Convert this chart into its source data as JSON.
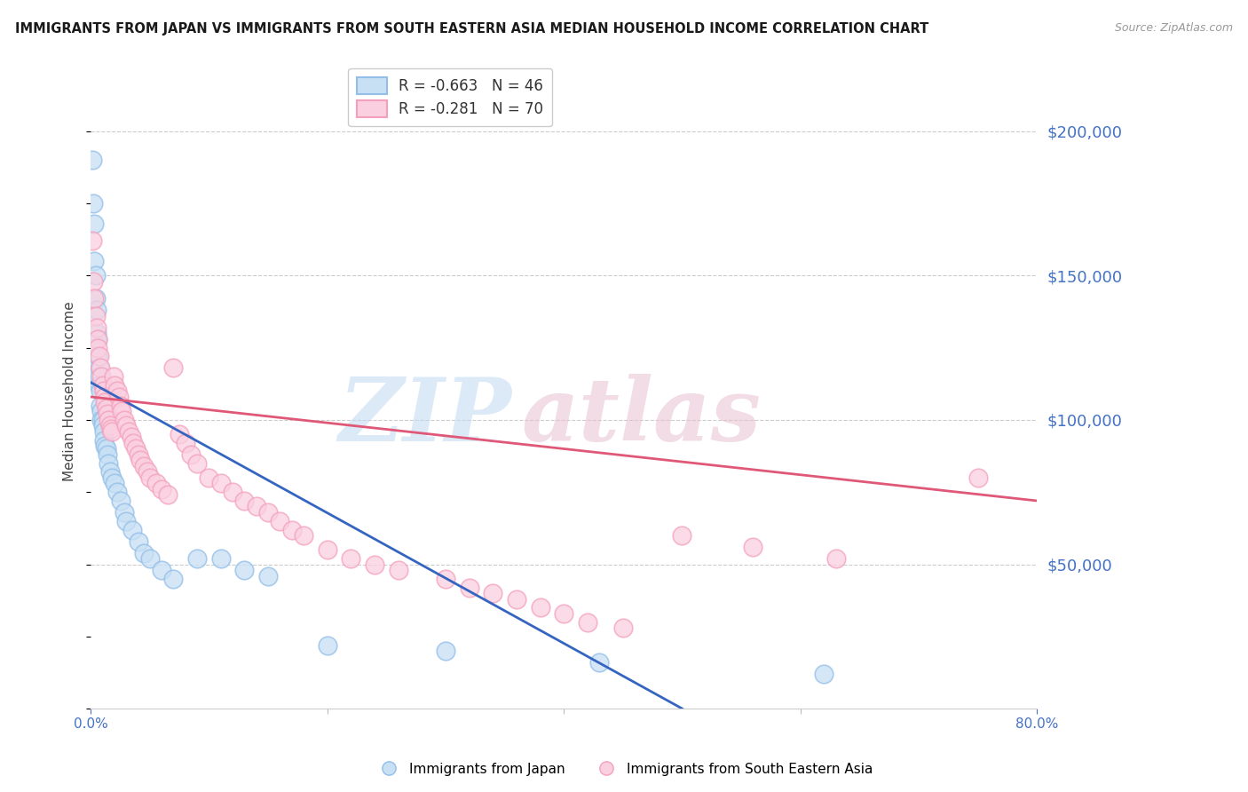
{
  "title": "IMMIGRANTS FROM JAPAN VS IMMIGRANTS FROM SOUTH EASTERN ASIA MEDIAN HOUSEHOLD INCOME CORRELATION CHART",
  "source": "Source: ZipAtlas.com",
  "ylabel": "Median Household Income",
  "series1_label": "Immigrants from Japan",
  "series2_label": "Immigrants from South Eastern Asia",
  "series1_color": "#92bee8",
  "series2_color": "#f4a0bc",
  "series1_R": -0.663,
  "series1_N": 46,
  "series2_R": -0.281,
  "series2_N": 70,
  "xmin": 0.0,
  "xmax": 0.8,
  "ymin": 0,
  "ymax": 220000,
  "yticks": [
    50000,
    100000,
    150000,
    200000
  ],
  "ytick_labels": [
    "$50,000",
    "$100,000",
    "$150,000",
    "$200,000"
  ],
  "background_color": "#ffffff",
  "grid_color": "#cccccc",
  "tick_label_color": "#4472c4",
  "title_fontsize": 11,
  "series1_x": [
    0.001,
    0.002,
    0.003,
    0.003,
    0.004,
    0.004,
    0.005,
    0.005,
    0.006,
    0.006,
    0.007,
    0.007,
    0.007,
    0.008,
    0.008,
    0.009,
    0.009,
    0.01,
    0.01,
    0.011,
    0.011,
    0.012,
    0.013,
    0.014,
    0.015,
    0.016,
    0.018,
    0.02,
    0.022,
    0.025,
    0.028,
    0.03,
    0.035,
    0.04,
    0.045,
    0.05,
    0.06,
    0.07,
    0.09,
    0.11,
    0.13,
    0.15,
    0.2,
    0.3,
    0.43,
    0.62
  ],
  "series1_y": [
    190000,
    175000,
    168000,
    155000,
    150000,
    142000,
    138000,
    130000,
    128000,
    122000,
    118000,
    115000,
    112000,
    110000,
    105000,
    103000,
    100000,
    100000,
    98000,
    96000,
    93000,
    91000,
    90000,
    88000,
    85000,
    82000,
    80000,
    78000,
    75000,
    72000,
    68000,
    65000,
    62000,
    58000,
    54000,
    52000,
    48000,
    45000,
    52000,
    52000,
    48000,
    46000,
    22000,
    20000,
    16000,
    12000
  ],
  "series2_x": [
    0.001,
    0.002,
    0.003,
    0.004,
    0.005,
    0.006,
    0.006,
    0.007,
    0.008,
    0.009,
    0.01,
    0.011,
    0.012,
    0.012,
    0.013,
    0.014,
    0.015,
    0.016,
    0.017,
    0.018,
    0.019,
    0.02,
    0.022,
    0.024,
    0.025,
    0.026,
    0.028,
    0.03,
    0.032,
    0.034,
    0.036,
    0.038,
    0.04,
    0.042,
    0.045,
    0.048,
    0.05,
    0.055,
    0.06,
    0.065,
    0.07,
    0.075,
    0.08,
    0.085,
    0.09,
    0.1,
    0.11,
    0.12,
    0.13,
    0.14,
    0.15,
    0.16,
    0.17,
    0.18,
    0.2,
    0.22,
    0.24,
    0.26,
    0.3,
    0.32,
    0.34,
    0.36,
    0.38,
    0.4,
    0.42,
    0.45,
    0.5,
    0.56,
    0.63,
    0.75
  ],
  "series2_y": [
    162000,
    148000,
    142000,
    136000,
    132000,
    128000,
    125000,
    122000,
    118000,
    115000,
    112000,
    110000,
    108000,
    106000,
    104000,
    102000,
    100000,
    98000,
    97000,
    96000,
    115000,
    112000,
    110000,
    108000,
    105000,
    103000,
    100000,
    98000,
    96000,
    94000,
    92000,
    90000,
    88000,
    86000,
    84000,
    82000,
    80000,
    78000,
    76000,
    74000,
    118000,
    95000,
    92000,
    88000,
    85000,
    80000,
    78000,
    75000,
    72000,
    70000,
    68000,
    65000,
    62000,
    60000,
    55000,
    52000,
    50000,
    48000,
    45000,
    42000,
    40000,
    38000,
    35000,
    33000,
    30000,
    28000,
    60000,
    56000,
    52000,
    80000
  ],
  "line1_x0": 0.0,
  "line1_y0": 113000,
  "line1_x1": 0.5,
  "line1_y1": 0,
  "line2_x0": 0.0,
  "line2_y0": 108000,
  "line2_x1": 0.8,
  "line2_y1": 72000
}
